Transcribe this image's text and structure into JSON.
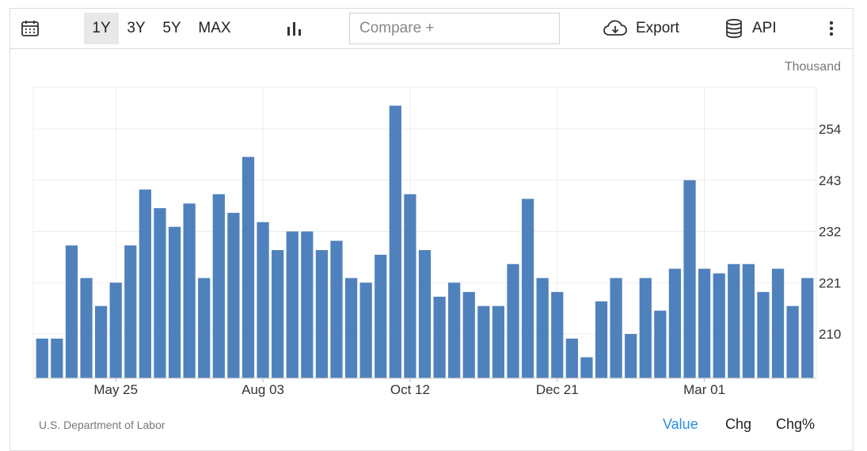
{
  "toolbar": {
    "ranges": [
      "1Y",
      "3Y",
      "5Y",
      "MAX"
    ],
    "active_range": "1Y",
    "compare_placeholder": "Compare +",
    "export_label": "Export",
    "api_label": "API"
  },
  "unit_label": "Thousand",
  "source_label": "U.S. Department of Labor",
  "value_tabs": [
    "Value",
    "Chg",
    "Chg%"
  ],
  "active_value_tab": "Value",
  "colors": {
    "bar": "#4f81bd",
    "accent": "#2a8fe0",
    "grid": "#ececec"
  },
  "chart_data": {
    "type": "bar",
    "x_tick_labels": [
      "May 25",
      "Aug 03",
      "Oct 12",
      "Dec 21",
      "Mar 01"
    ],
    "x_tick_bar_index": [
      5,
      15,
      25,
      35,
      45
    ],
    "values": [
      209,
      209,
      229,
      222,
      216,
      221,
      229,
      241,
      237,
      233,
      238,
      222,
      240,
      236,
      248,
      234,
      228,
      232,
      232,
      228,
      230,
      222,
      221,
      227,
      259,
      240,
      228,
      218,
      221,
      219,
      216,
      216,
      225,
      239,
      222,
      219,
      209,
      205,
      217,
      222,
      210,
      222,
      215,
      224,
      243,
      224,
      223,
      225,
      225,
      219,
      224,
      216,
      222
    ],
    "y_ticks": [
      210,
      221,
      232,
      243,
      254
    ],
    "ylim": [
      200.5,
      263
    ],
    "grid": true
  }
}
